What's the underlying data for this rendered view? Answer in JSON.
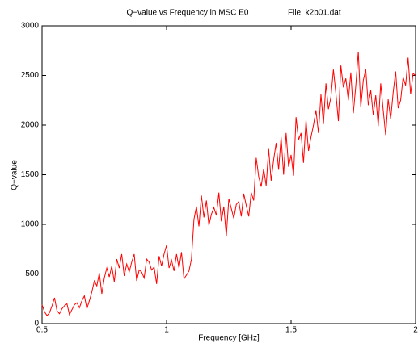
{
  "chart_data": {
    "type": "line",
    "title": "Q−value vs Frequency in MSC E0",
    "subtitle": "File: k2b01.dat",
    "x_label": "Frequency [GHz]",
    "y_label": "Q−value",
    "x": [
      0.5,
      0.51,
      0.52,
      0.53,
      0.54,
      0.55,
      0.56,
      0.57,
      0.58,
      0.59,
      0.6,
      0.61,
      0.62,
      0.63,
      0.64,
      0.65,
      0.66,
      0.67,
      0.68,
      0.69,
      0.7,
      0.71,
      0.72,
      0.73,
      0.74,
      0.75,
      0.76,
      0.77,
      0.78,
      0.79,
      0.8,
      0.81,
      0.82,
      0.83,
      0.84,
      0.85,
      0.86,
      0.87,
      0.88,
      0.89,
      0.9,
      0.91,
      0.92,
      0.93,
      0.94,
      0.95,
      0.96,
      0.97,
      0.98,
      0.99,
      1.0,
      1.01,
      1.02,
      1.03,
      1.04,
      1.05,
      1.06,
      1.07,
      1.08,
      1.09,
      1.1,
      1.11,
      1.12,
      1.13,
      1.14,
      1.15,
      1.16,
      1.17,
      1.18,
      1.19,
      1.2,
      1.21,
      1.22,
      1.23,
      1.24,
      1.25,
      1.26,
      1.27,
      1.28,
      1.29,
      1.3,
      1.31,
      1.32,
      1.33,
      1.34,
      1.35,
      1.36,
      1.37,
      1.38,
      1.39,
      1.4,
      1.41,
      1.42,
      1.43,
      1.44,
      1.45,
      1.46,
      1.47,
      1.48,
      1.49,
      1.5,
      1.51,
      1.52,
      1.53,
      1.54,
      1.55,
      1.56,
      1.57,
      1.58,
      1.59,
      1.6,
      1.61,
      1.62,
      1.63,
      1.64,
      1.65,
      1.66,
      1.67,
      1.68,
      1.69,
      1.7,
      1.71,
      1.72,
      1.73,
      1.74,
      1.75,
      1.76,
      1.77,
      1.78,
      1.79,
      1.8,
      1.81,
      1.82,
      1.83,
      1.84,
      1.85,
      1.86,
      1.87,
      1.88,
      1.89,
      1.9,
      1.91,
      1.92,
      1.93,
      1.94,
      1.95,
      1.96,
      1.97,
      1.98,
      1.99,
      2.0
    ],
    "series": [
      {
        "color": "#ff0000",
        "values": [
          190,
          120,
          80,
          110,
          180,
          260,
          130,
          100,
          150,
          180,
          200,
          90,
          140,
          190,
          210,
          160,
          230,
          280,
          150,
          230,
          320,
          430,
          380,
          510,
          300,
          460,
          560,
          470,
          580,
          420,
          650,
          560,
          700,
          480,
          600,
          520,
          620,
          700,
          430,
          540,
          520,
          460,
          650,
          620,
          540,
          570,
          400,
          680,
          580,
          700,
          790,
          560,
          640,
          530,
          700,
          560,
          720,
          450,
          490,
          530,
          650,
          1050,
          1180,
          980,
          1290,
          1070,
          1240,
          990,
          1100,
          1170,
          1090,
          1320,
          1030,
          1180,
          880,
          1260,
          1160,
          1060,
          1200,
          1230,
          1080,
          1310,
          1190,
          1080,
          1320,
          1240,
          1670,
          1480,
          1380,
          1560,
          1390,
          1760,
          1440,
          1650,
          1820,
          1550,
          1880,
          1500,
          1920,
          1580,
          1700,
          1490,
          2080,
          1850,
          1920,
          1620,
          2050,
          1740,
          1880,
          2000,
          2150,
          1920,
          2310,
          2010,
          2420,
          2160,
          2280,
          2560,
          2320,
          2040,
          2600,
          2380,
          2470,
          2250,
          2530,
          2120,
          2400,
          2740,
          2180,
          2450,
          2560,
          2200,
          2350,
          2100,
          2300,
          1990,
          2420,
          2150,
          1900,
          2260,
          2060,
          2330,
          2540,
          2170,
          2250,
          2480,
          2400,
          2680,
          2310,
          2520,
          2500
        ]
      }
    ],
    "xlim": [
      0.5,
      2
    ],
    "xticks": [
      0.5,
      1,
      1.5,
      2
    ],
    "ylim": [
      0,
      3000
    ],
    "yticks": [
      0,
      500,
      1000,
      1500,
      2000,
      2500,
      3000
    ]
  }
}
